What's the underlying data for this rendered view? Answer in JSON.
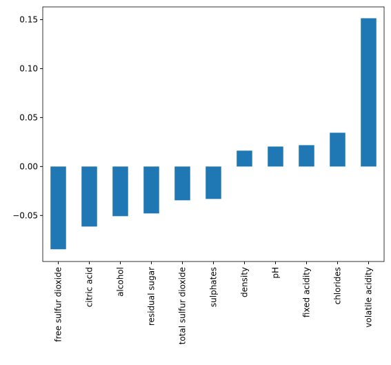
{
  "chart_data": {
    "type": "bar",
    "categories": [
      "free sulfur dioxide",
      "citric acid",
      "alcohol",
      "residual sugar",
      "total sulfur dioxide",
      "sulphates",
      "density",
      "pH",
      "fixed acidity",
      "chlorides",
      "volatile acidity"
    ],
    "values": [
      -0.0845,
      -0.0613,
      -0.0507,
      -0.0479,
      -0.0345,
      -0.0331,
      0.0162,
      0.0204,
      0.0218,
      0.0345,
      0.1514
    ],
    "color": "#1f77b4",
    "ylim": [
      -0.097,
      0.163
    ],
    "yticks": [
      {
        "value": -0.05,
        "label": "−0.05"
      },
      {
        "value": 0,
        "label": "0.00"
      },
      {
        "value": 0.05,
        "label": "0.05"
      },
      {
        "value": 0.1,
        "label": "0.10"
      },
      {
        "value": 0.15,
        "label": "0.15"
      }
    ],
    "grid": false
  }
}
